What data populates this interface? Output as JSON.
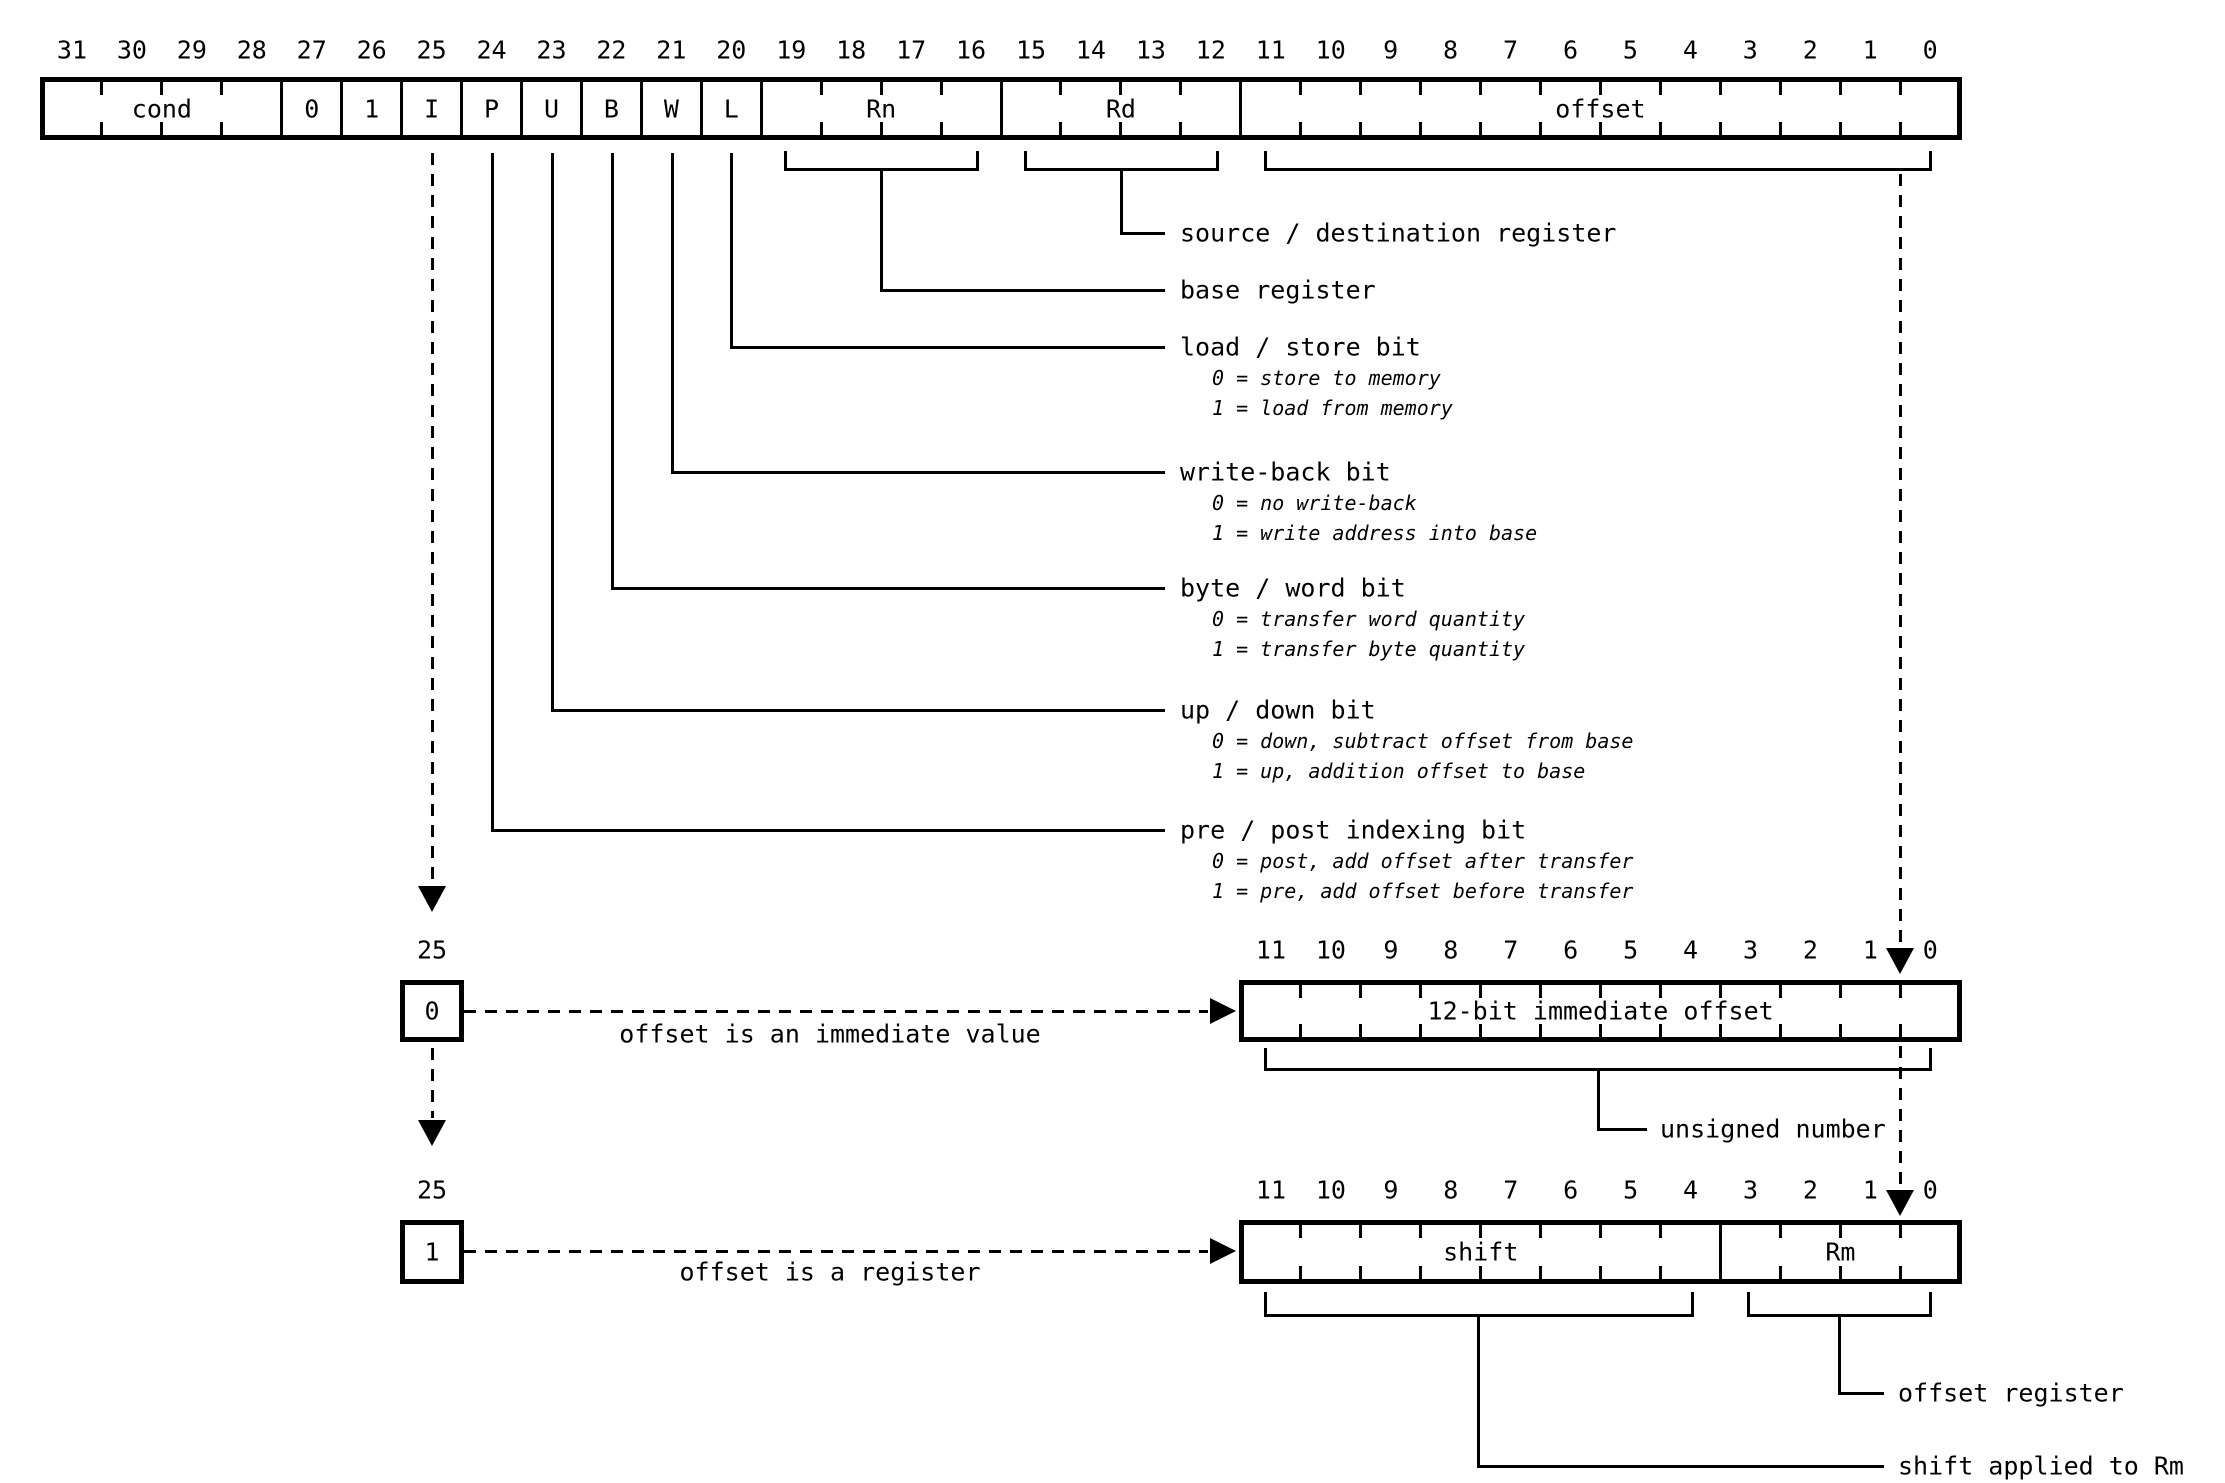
{
  "top": {
    "bits": [
      "31",
      "30",
      "29",
      "28",
      "27",
      "26",
      "25",
      "24",
      "23",
      "22",
      "21",
      "20",
      "19",
      "18",
      "17",
      "16",
      "15",
      "14",
      "13",
      "12",
      "11",
      "10",
      "9",
      "8",
      "7",
      "6",
      "5",
      "4",
      "3",
      "2",
      "1",
      "0"
    ],
    "fields": [
      {
        "label": "cond",
        "span": 4
      },
      {
        "label": "0",
        "span": 1
      },
      {
        "label": "1",
        "span": 1
      },
      {
        "label": "I",
        "span": 1
      },
      {
        "label": "P",
        "span": 1
      },
      {
        "label": "U",
        "span": 1
      },
      {
        "label": "B",
        "span": 1
      },
      {
        "label": "W",
        "span": 1
      },
      {
        "label": "L",
        "span": 1
      },
      {
        "label": "Rn",
        "span": 4
      },
      {
        "label": "Rd",
        "span": 4
      },
      {
        "label": "offset",
        "span": 12
      }
    ]
  },
  "callouts": [
    {
      "label": "source / destination register",
      "items": []
    },
    {
      "label": "base register",
      "items": []
    },
    {
      "label": "load / store bit",
      "items": [
        "0 = store to memory",
        "1 = load from memory"
      ]
    },
    {
      "label": "write-back bit",
      "items": [
        "0 = no write-back",
        "1 = write address into base"
      ]
    },
    {
      "label": "byte / word bit",
      "items": [
        "0 = transfer word quantity",
        "1 = transfer byte quantity"
      ]
    },
    {
      "label": "up / down bit",
      "items": [
        "0 = down, subtract offset from base",
        "1 = up, addition offset to base"
      ]
    },
    {
      "label": "pre / post indexing bit",
      "items": [
        "0 = post, add offset after transfer",
        "1 = pre, add offset before transfer"
      ]
    }
  ],
  "branch_immediate": {
    "bit_number": "25",
    "bit_value": "0",
    "caption": "offset is an immediate value",
    "bits": [
      "11",
      "10",
      "9",
      "8",
      "7",
      "6",
      "5",
      "4",
      "3",
      "2",
      "1",
      "0"
    ],
    "fields": [
      {
        "label": "12-bit immediate offset",
        "span": 12
      }
    ],
    "note": "unsigned number"
  },
  "branch_register": {
    "bit_number": "25",
    "bit_value": "1",
    "caption": "offset is a register",
    "bits": [
      "11",
      "10",
      "9",
      "8",
      "7",
      "6",
      "5",
      "4",
      "3",
      "2",
      "1",
      "0"
    ],
    "fields": [
      {
        "label": "shift",
        "span": 8
      },
      {
        "label": "Rm",
        "span": 4
      }
    ],
    "note_shift": "shift applied to Rm",
    "note_rm": "offset register"
  },
  "colors": {
    "ink": "#000000",
    "paper": "#ffffff"
  }
}
